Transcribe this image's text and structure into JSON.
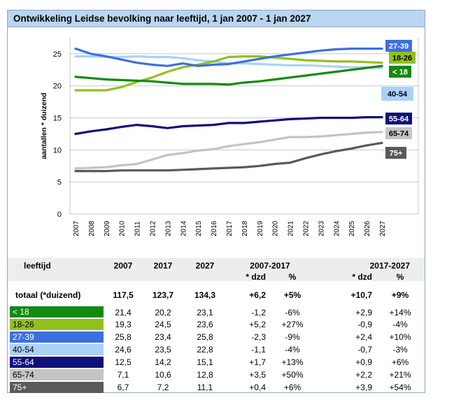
{
  "title": "Ontwikkeling Leidse bevolking naar leeftijd, 1 jan 2007 - 1 jan 2027",
  "chart_data": {
    "type": "line",
    "title": "Ontwikkeling Leidse bevolking naar leeftijd, 1 jan 2007 - 1 jan 2027",
    "xlabel": "",
    "ylabel": "aantallen * duizend",
    "ylim": [
      0,
      27.5
    ],
    "yticks": [
      0,
      5,
      10,
      15,
      20,
      25
    ],
    "grid": true,
    "categories": [
      "2007",
      "2008",
      "2009",
      "2010",
      "2011",
      "2012",
      "2013",
      "2014",
      "2015",
      "2016",
      "2017",
      "2018",
      "2019",
      "2020",
      "2021",
      "2022",
      "2023",
      "2024",
      "2025",
      "2026",
      "2027"
    ],
    "series": [
      {
        "name": "27-39",
        "color": "#3d6fe0",
        "label_text_color": "#ffffff",
        "values": [
          25.8,
          25.0,
          24.6,
          24.1,
          23.6,
          23.3,
          23.1,
          23.5,
          23.1,
          23.3,
          23.4,
          23.8,
          24.2,
          24.6,
          24.9,
          25.2,
          25.5,
          25.7,
          25.8,
          25.8,
          25.8
        ]
      },
      {
        "name": "18-26",
        "color": "#92c01f",
        "label_text_color": "#000000",
        "values": [
          19.3,
          19.3,
          19.3,
          19.8,
          20.6,
          21.3,
          22.2,
          22.9,
          23.3,
          23.8,
          24.5,
          24.6,
          24.6,
          24.4,
          24.2,
          24.0,
          23.9,
          23.8,
          23.8,
          23.7,
          23.6
        ]
      },
      {
        "name": "< 18",
        "color": "#128a12",
        "label_text_color": "#ffffff",
        "values": [
          21.4,
          21.2,
          21.0,
          20.9,
          20.8,
          20.7,
          20.5,
          20.3,
          20.3,
          20.3,
          20.2,
          20.5,
          20.7,
          21.0,
          21.3,
          21.6,
          21.9,
          22.2,
          22.5,
          22.8,
          23.1
        ]
      },
      {
        "name": "40-54",
        "color": "#a9d2f8",
        "label_text_color": "#000000",
        "values": [
          24.6,
          24.6,
          24.5,
          24.5,
          24.6,
          24.5,
          24.5,
          24.3,
          24.0,
          23.8,
          23.5,
          23.5,
          23.4,
          23.3,
          23.2,
          23.2,
          23.1,
          23.0,
          22.9,
          22.9,
          22.8
        ]
      },
      {
        "name": "55-64",
        "color": "#10107a",
        "label_text_color": "#ffffff",
        "values": [
          12.5,
          12.9,
          13.2,
          13.6,
          13.9,
          13.7,
          13.4,
          13.7,
          13.8,
          13.9,
          14.2,
          14.2,
          14.4,
          14.6,
          14.8,
          14.9,
          15.0,
          15.0,
          15.0,
          15.1,
          15.1
        ]
      },
      {
        "name": "65-74",
        "color": "#c4c4c4",
        "label_text_color": "#000000",
        "values": [
          7.1,
          7.2,
          7.3,
          7.6,
          7.8,
          8.5,
          9.2,
          9.5,
          9.9,
          10.1,
          10.6,
          10.9,
          11.2,
          11.6,
          12.0,
          12.0,
          12.1,
          12.3,
          12.5,
          12.7,
          12.8
        ]
      },
      {
        "name": "75+",
        "color": "#5a5a5a",
        "label_text_color": "#ffffff",
        "values": [
          6.7,
          6.7,
          6.7,
          6.8,
          6.8,
          6.8,
          6.8,
          6.9,
          7.0,
          7.1,
          7.2,
          7.3,
          7.5,
          7.8,
          8.0,
          8.7,
          9.3,
          9.8,
          10.2,
          10.7,
          11.1
        ]
      }
    ]
  },
  "table": {
    "header": {
      "col_label": "leeftijd",
      "y2007": "2007",
      "y2017": "2017",
      "y2027": "2027",
      "period1": "2007-2017",
      "period2": "2017-2027",
      "dzd": "* dzd",
      "pct": "%"
    },
    "total": {
      "label": "totaal (*duizend)",
      "y2007": "117,5",
      "y2017": "123,7",
      "y2027": "134,3",
      "d1": "+6,2",
      "p1": "+5%",
      "d2": "+10,7",
      "p2": "+9%"
    },
    "rows": [
      {
        "label": "< 18",
        "color": "#128a12",
        "text_color": "#ffffff",
        "y2007": "21,4",
        "y2017": "20,2",
        "y2027": "23,1",
        "d1": "-1,2",
        "p1": "-6%",
        "d2": "+2,9",
        "p2": "+14%"
      },
      {
        "label": "18-26",
        "color": "#92c01f",
        "text_color": "#000000",
        "y2007": "19,3",
        "y2017": "24,5",
        "y2027": "23,6",
        "d1": "+5,2",
        "p1": "+27%",
        "d2": "-0,9",
        "p2": "-4%"
      },
      {
        "label": "27-39",
        "color": "#3d6fe0",
        "text_color": "#ffffff",
        "y2007": "25,8",
        "y2017": "23,4",
        "y2027": "25,8",
        "d1": "-2,3",
        "p1": "-9%",
        "d2": "+2,4",
        "p2": "+10%"
      },
      {
        "label": "40-54",
        "color": "#a9d2f8",
        "text_color": "#000000",
        "y2007": "24,6",
        "y2017": "23,5",
        "y2027": "22,8",
        "d1": "-1,1",
        "p1": "-4%",
        "d2": "-0,7",
        "p2": "-3%"
      },
      {
        "label": "55-64",
        "color": "#10107a",
        "text_color": "#ffffff",
        "y2007": "12,5",
        "y2017": "14,2",
        "y2027": "15,1",
        "d1": "+1,7",
        "p1": "+13%",
        "d2": "+0,9",
        "p2": "+6%"
      },
      {
        "label": "65-74",
        "color": "#c4c4c4",
        "text_color": "#000000",
        "y2007": "7,1",
        "y2017": "10,6",
        "y2027": "12,8",
        "d1": "+3,5",
        "p1": "+50%",
        "d2": "+2,2",
        "p2": "+21%"
      },
      {
        "label": "75+",
        "color": "#5a5a5a",
        "text_color": "#ffffff",
        "y2007": "6,7",
        "y2017": "7,2",
        "y2027": "11,1",
        "d1": "+0,4",
        "p1": "+6%",
        "d2": "+3,9",
        "p2": "+54%"
      }
    ]
  }
}
